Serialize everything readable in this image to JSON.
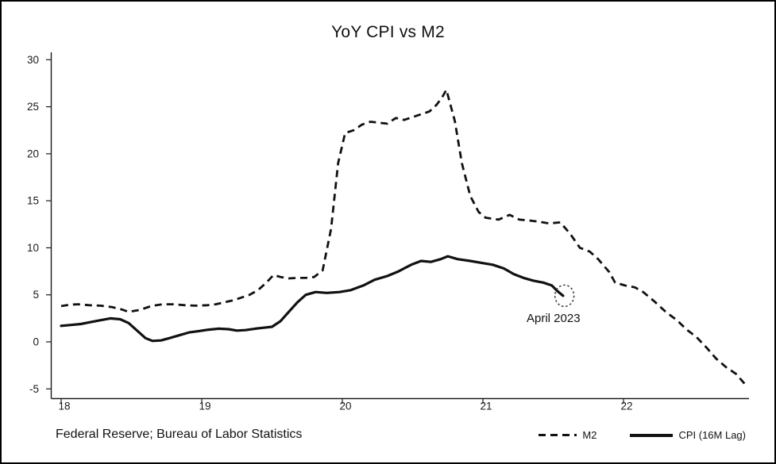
{
  "figure": {
    "title": "YoY CPI vs M2",
    "source_text": "Federal Reserve; Bureau of Labor Statistics",
    "annotation_label": "April 2023"
  },
  "legend": {
    "items": [
      {
        "label": "M2",
        "style": "dashed"
      },
      {
        "label": "CPI (16M Lag)",
        "style": "solid"
      }
    ]
  },
  "colors": {
    "line": "#111111",
    "background": "#ffffff",
    "border": "#000000"
  },
  "chart_data": {
    "type": "line",
    "title": "YoY CPI vs M2",
    "xlabel": "",
    "ylabel": "",
    "x_ticks": [
      18,
      19,
      20,
      21,
      22
    ],
    "y_ticks": [
      -5,
      0,
      5,
      10,
      15,
      20,
      25,
      30
    ],
    "xlim": [
      18,
      22.95
    ],
    "ylim": [
      -5,
      30
    ],
    "grid": false,
    "legend_position": "bottom-right",
    "line_color": "#111111",
    "annotations": [
      {
        "text": "April 2023",
        "x": 21.58,
        "y": 4.9,
        "marker": "dotted-circle"
      }
    ],
    "series": [
      {
        "name": "M2",
        "style": "dashed",
        "points": [
          [
            18.0,
            3.8
          ],
          [
            18.06,
            3.95
          ],
          [
            18.12,
            4.0
          ],
          [
            18.2,
            3.9
          ],
          [
            18.28,
            3.85
          ],
          [
            18.36,
            3.7
          ],
          [
            18.42,
            3.5
          ],
          [
            18.48,
            3.2
          ],
          [
            18.56,
            3.4
          ],
          [
            18.64,
            3.8
          ],
          [
            18.72,
            4.0
          ],
          [
            18.8,
            4.0
          ],
          [
            18.88,
            3.9
          ],
          [
            18.96,
            3.85
          ],
          [
            19.04,
            3.9
          ],
          [
            19.1,
            4.0
          ],
          [
            19.16,
            4.2
          ],
          [
            19.22,
            4.4
          ],
          [
            19.28,
            4.7
          ],
          [
            19.34,
            5.0
          ],
          [
            19.4,
            5.5
          ],
          [
            19.46,
            6.3
          ],
          [
            19.51,
            7.1
          ],
          [
            19.56,
            6.9
          ],
          [
            19.62,
            6.75
          ],
          [
            19.68,
            6.8
          ],
          [
            19.74,
            6.8
          ],
          [
            19.8,
            6.9
          ],
          [
            19.86,
            7.6
          ],
          [
            19.92,
            12.0
          ],
          [
            19.97,
            19.0
          ],
          [
            20.02,
            22.2
          ],
          [
            20.08,
            22.5
          ],
          [
            20.14,
            23.1
          ],
          [
            20.2,
            23.4
          ],
          [
            20.26,
            23.3
          ],
          [
            20.32,
            23.2
          ],
          [
            20.38,
            23.8
          ],
          [
            20.44,
            23.6
          ],
          [
            20.5,
            23.9
          ],
          [
            20.56,
            24.2
          ],
          [
            20.62,
            24.5
          ],
          [
            20.67,
            25.2
          ],
          [
            20.71,
            26.0
          ],
          [
            20.74,
            26.8
          ],
          [
            20.8,
            23.5
          ],
          [
            20.85,
            19.0
          ],
          [
            20.91,
            15.5
          ],
          [
            20.97,
            13.8
          ],
          [
            21.02,
            13.2
          ],
          [
            21.11,
            13.0
          ],
          [
            21.19,
            13.5
          ],
          [
            21.26,
            13.0
          ],
          [
            21.33,
            12.9
          ],
          [
            21.41,
            12.75
          ],
          [
            21.47,
            12.6
          ],
          [
            21.55,
            12.7
          ],
          [
            21.62,
            11.5
          ],
          [
            21.69,
            10.0
          ],
          [
            21.76,
            9.6
          ],
          [
            21.82,
            8.8
          ],
          [
            21.9,
            7.4
          ],
          [
            21.94,
            6.3
          ],
          [
            22.01,
            6.0
          ],
          [
            22.08,
            5.8
          ],
          [
            22.14,
            5.3
          ],
          [
            22.22,
            4.3
          ],
          [
            22.3,
            3.2
          ],
          [
            22.38,
            2.3
          ],
          [
            22.45,
            1.3
          ],
          [
            22.52,
            0.5
          ],
          [
            22.59,
            -0.6
          ],
          [
            22.66,
            -1.8
          ],
          [
            22.73,
            -2.7
          ],
          [
            22.8,
            -3.4
          ],
          [
            22.87,
            -4.6
          ]
        ]
      },
      {
        "name": "CPI (16M Lag)",
        "style": "solid",
        "points": [
          [
            18.0,
            1.7
          ],
          [
            18.07,
            1.8
          ],
          [
            18.14,
            1.9
          ],
          [
            18.21,
            2.1
          ],
          [
            18.28,
            2.3
          ],
          [
            18.35,
            2.5
          ],
          [
            18.42,
            2.4
          ],
          [
            18.48,
            2.0
          ],
          [
            18.54,
            1.2
          ],
          [
            18.6,
            0.4
          ],
          [
            18.65,
            0.1
          ],
          [
            18.71,
            0.15
          ],
          [
            18.77,
            0.4
          ],
          [
            18.84,
            0.7
          ],
          [
            18.91,
            1.0
          ],
          [
            18.98,
            1.15
          ],
          [
            19.05,
            1.3
          ],
          [
            19.12,
            1.4
          ],
          [
            19.19,
            1.35
          ],
          [
            19.25,
            1.2
          ],
          [
            19.31,
            1.25
          ],
          [
            19.38,
            1.4
          ],
          [
            19.44,
            1.5
          ],
          [
            19.5,
            1.6
          ],
          [
            19.56,
            2.2
          ],
          [
            19.62,
            3.2
          ],
          [
            19.68,
            4.2
          ],
          [
            19.74,
            5.0
          ],
          [
            19.81,
            5.3
          ],
          [
            19.89,
            5.2
          ],
          [
            19.98,
            5.3
          ],
          [
            20.06,
            5.5
          ],
          [
            20.15,
            6.0
          ],
          [
            20.23,
            6.6
          ],
          [
            20.32,
            7.0
          ],
          [
            20.4,
            7.5
          ],
          [
            20.49,
            8.2
          ],
          [
            20.56,
            8.6
          ],
          [
            20.63,
            8.5
          ],
          [
            20.7,
            8.8
          ],
          [
            20.75,
            9.1
          ],
          [
            20.82,
            8.8
          ],
          [
            20.91,
            8.6
          ],
          [
            20.99,
            8.4
          ],
          [
            21.07,
            8.2
          ],
          [
            21.15,
            7.8
          ],
          [
            21.22,
            7.2
          ],
          [
            21.29,
            6.8
          ],
          [
            21.36,
            6.5
          ],
          [
            21.43,
            6.3
          ],
          [
            21.49,
            6.0
          ],
          [
            21.53,
            5.4
          ],
          [
            21.57,
            4.9
          ]
        ]
      }
    ]
  }
}
